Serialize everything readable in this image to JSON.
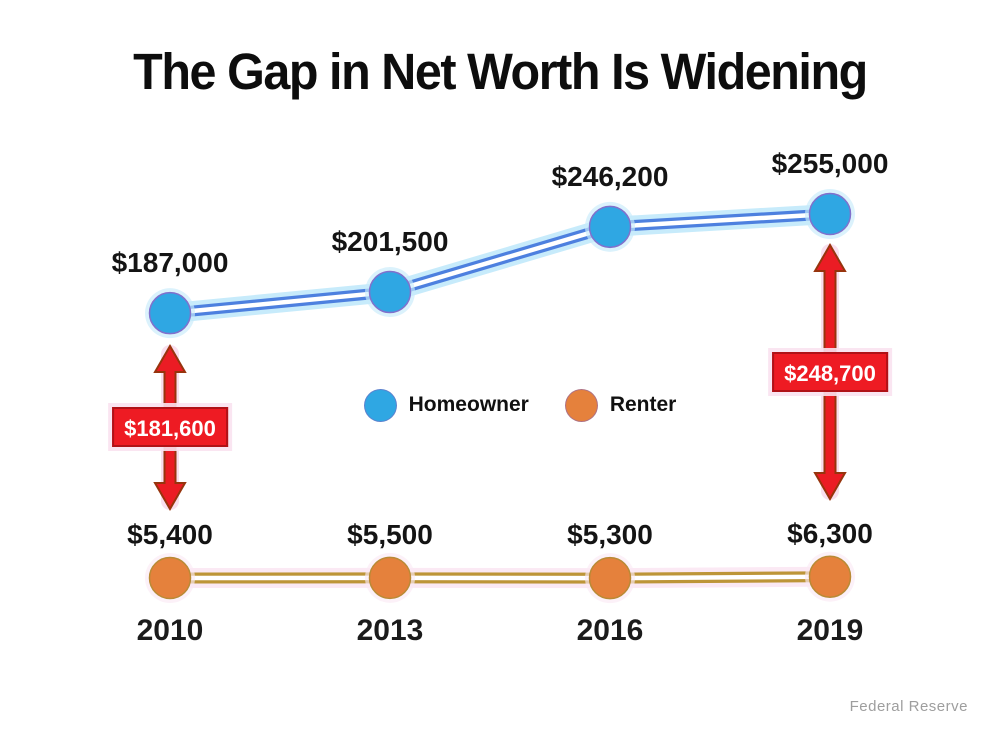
{
  "title": "The Gap in Net Worth Is Widening",
  "source": "Federal Reserve",
  "legend": [
    {
      "name": "Homeowner",
      "color": "#2FA7E3"
    },
    {
      "name": "Renter",
      "color": "#E5813C"
    }
  ],
  "colors": {
    "homeowner_marker": "#2FA7E3",
    "homeowner_line": "#4D80DF",
    "homeowner_glow": "#C7EBFB",
    "renter_marker": "#E5813C",
    "renter_line": "#BD9538",
    "renter_glow": "#FBE9F4",
    "gap_arrow_red": "#EB1C24",
    "gap_arrow_outline": "#97340D",
    "gap_box_fill": "#EE1B23"
  },
  "chart_data": {
    "type": "line",
    "categories": [
      "2010",
      "2013",
      "2016",
      "2019"
    ],
    "series": [
      {
        "name": "Homeowner",
        "values": [
          187000,
          201500,
          246200,
          255000
        ],
        "labels": [
          "$187,000",
          "$201,500",
          "$246,200",
          "$255,000"
        ]
      },
      {
        "name": "Renter",
        "values": [
          5400,
          5500,
          5300,
          6300
        ],
        "labels": [
          "$5,400",
          "$5,500",
          "$5,300",
          "$6,300"
        ]
      }
    ],
    "annotations": [
      {
        "label": "$181,600",
        "category": "2010"
      },
      {
        "label": "$248,700",
        "category": "2019"
      }
    ],
    "ylim": [
      0,
      270000
    ],
    "grid": false,
    "legend_position": "center"
  }
}
